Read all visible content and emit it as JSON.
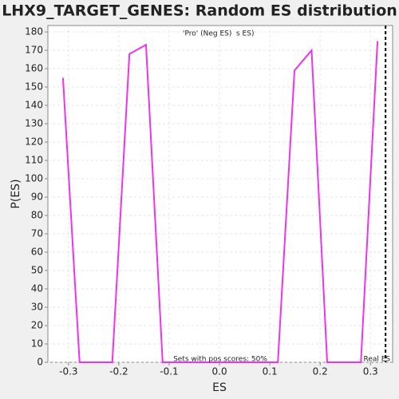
{
  "chart_data": {
    "type": "line",
    "title": "LHX9_TARGET_GENES: Random ES distribution",
    "x_label": "ES",
    "y_label": "P(ES)",
    "legend": [
      "'Pro' (Neg ES)",
      "s ES)"
    ],
    "legend_colors": [
      "#0000cc",
      "#dd0000"
    ],
    "annotation": "Sets with pos scores: 50%",
    "real_es": {
      "value": 0.33,
      "label": "Real ES"
    },
    "x": [
      -0.311,
      -0.278,
      -0.213,
      -0.179,
      -0.146,
      -0.113,
      0.116,
      0.149,
      0.183,
      0.214,
      0.281,
      0.314
    ],
    "series": [
      {
        "color": "#ee33ee",
        "values": [
          155,
          0,
          0,
          168,
          173,
          0,
          0,
          159,
          170,
          0,
          0,
          175
        ]
      }
    ],
    "xlim": [
      -0.341,
      0.344
    ],
    "ylim": [
      0,
      183.5
    ],
    "xticks": [
      -0.3,
      -0.2,
      -0.1,
      {
        "value": 0,
        "label": "0.0"
      },
      0.1,
      0.2,
      0.3
    ],
    "yticks": [
      0,
      10,
      20,
      30,
      40,
      50,
      60,
      70,
      80,
      90,
      100,
      110,
      120,
      130,
      140,
      150,
      160,
      170,
      180
    ],
    "grid": true
  }
}
